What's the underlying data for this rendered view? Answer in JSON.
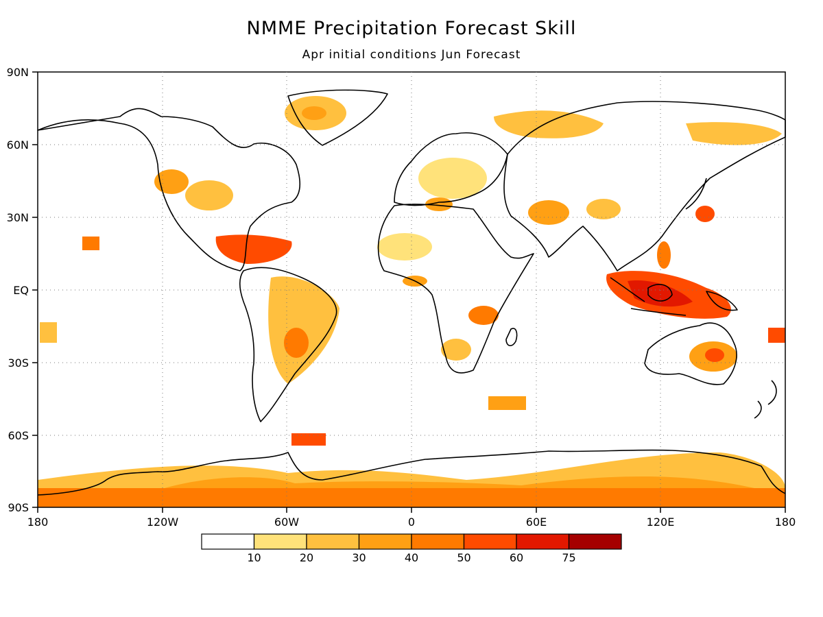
{
  "title": "NMME Precipitation Forecast Skill",
  "subtitle": "Apr initial conditions  Jun Forecast",
  "map": {
    "lat_labels": [
      "90N",
      "60N",
      "30N",
      "EQ",
      "30S",
      "60S",
      "90S"
    ],
    "lon_labels": [
      "180",
      "120W",
      "60W",
      "0",
      "60E",
      "120E",
      "180"
    ],
    "grid": "dotted",
    "colorbar": {
      "colors": [
        "#ffffff",
        "#ffe27a",
        "#ffc03f",
        "#ffa014",
        "#ff7a00",
        "#ff4b00",
        "#e21800",
        "#a50000"
      ],
      "labels": [
        "10",
        "20",
        "30",
        "40",
        "50",
        "60",
        "75"
      ]
    }
  }
}
